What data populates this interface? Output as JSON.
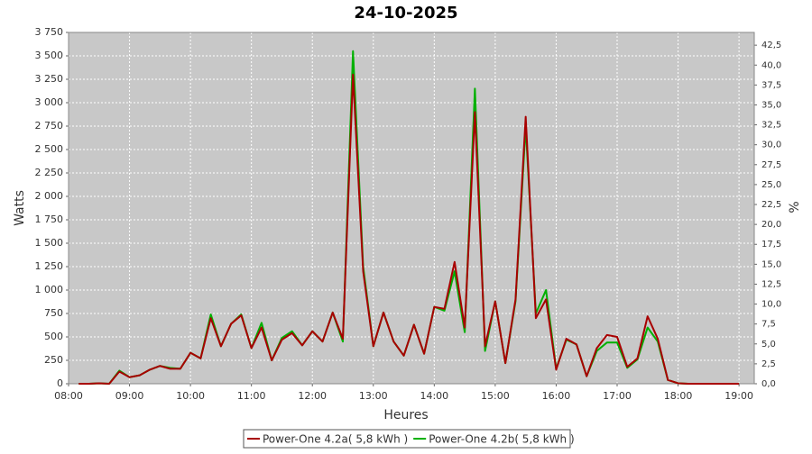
{
  "chart_data": {
    "type": "line",
    "title": "24-10-2025",
    "x_label": "Heures",
    "y_label": "Watts",
    "y2_label": "%",
    "x": [
      "08:10",
      "08:20",
      "08:30",
      "08:40",
      "08:50",
      "09:00",
      "09:10",
      "09:20",
      "09:30",
      "09:40",
      "09:50",
      "10:00",
      "10:10",
      "10:20",
      "10:30",
      "10:40",
      "10:50",
      "11:00",
      "11:10",
      "11:20",
      "11:30",
      "11:40",
      "11:50",
      "12:00",
      "12:10",
      "12:20",
      "12:30",
      "12:40",
      "12:50",
      "13:00",
      "13:10",
      "13:20",
      "13:30",
      "13:40",
      "13:50",
      "14:00",
      "14:10",
      "14:20",
      "14:30",
      "14:40",
      "14:50",
      "15:00",
      "15:10",
      "15:20",
      "15:30",
      "15:40",
      "15:50",
      "16:00",
      "16:10",
      "16:20",
      "16:30",
      "16:40",
      "16:50",
      "17:00",
      "17:10",
      "17:20",
      "17:30",
      "17:40",
      "17:50",
      "18:00",
      "18:10",
      "18:20",
      "18:30",
      "18:40",
      "18:50",
      "19:00"
    ],
    "series": [
      {
        "name": "Power-One 4.2a( 5,8 kWh )",
        "color": "#a80000",
        "values": [
          0,
          0,
          5,
          0,
          130,
          70,
          90,
          150,
          190,
          160,
          160,
          330,
          270,
          700,
          400,
          640,
          730,
          380,
          600,
          250,
          470,
          540,
          410,
          560,
          450,
          760,
          480,
          3300,
          1200,
          400,
          760,
          450,
          300,
          630,
          320,
          820,
          800,
          1300,
          600,
          2900,
          400,
          880,
          220,
          900,
          2850,
          700,
          900,
          150,
          480,
          420,
          80,
          380,
          520,
          500,
          180,
          270,
          720,
          480,
          40,
          5,
          0,
          0,
          0,
          0,
          0,
          0
        ]
      },
      {
        "name": "Power-One 4.2b( 5,8 kWh )",
        "color": "#00b000",
        "values": [
          0,
          0,
          5,
          0,
          140,
          70,
          90,
          150,
          190,
          170,
          160,
          330,
          270,
          740,
          400,
          640,
          740,
          380,
          650,
          250,
          490,
          560,
          410,
          560,
          450,
          760,
          450,
          3550,
          1250,
          400,
          760,
          450,
          300,
          630,
          320,
          820,
          780,
          1200,
          550,
          3150,
          350,
          880,
          220,
          880,
          2750,
          750,
          1000,
          160,
          470,
          420,
          80,
          350,
          440,
          440,
          170,
          260,
          600,
          450,
          40,
          5,
          0,
          0,
          0,
          0,
          0,
          0
        ]
      }
    ],
    "xlim": [
      "08:00",
      "19:15"
    ],
    "xticks": [
      "08:00",
      "09:00",
      "10:00",
      "11:00",
      "12:00",
      "13:00",
      "14:00",
      "15:00",
      "16:00",
      "17:00",
      "18:00",
      "19:00"
    ],
    "ylim": [
      0,
      3750
    ],
    "yticks": [
      0,
      250,
      500,
      750,
      {
        "value": 1000,
        "label": "1 000"
      },
      {
        "value": 1250,
        "label": "1 250"
      },
      {
        "value": 1500,
        "label": "1 500"
      },
      {
        "value": 1750,
        "label": "1 750"
      },
      {
        "value": 2000,
        "label": "2 000"
      },
      {
        "value": 2250,
        "label": "2 250"
      },
      {
        "value": 2500,
        "label": "2 500"
      },
      {
        "value": 2750,
        "label": "2 750"
      },
      {
        "value": 3000,
        "label": "3 000"
      },
      {
        "value": 3250,
        "label": "3 250"
      },
      {
        "value": 3500,
        "label": "3 500"
      },
      {
        "value": 3750,
        "label": "3 750"
      }
    ],
    "y2lim": [
      0,
      44.1
    ],
    "y2ticks": [
      {
        "value": 0,
        "label": "0,0"
      },
      {
        "value": 2.5,
        "label": "2,5"
      },
      {
        "value": 5,
        "label": "5,0"
      },
      {
        "value": 7.5,
        "label": "7,5"
      },
      {
        "value": 10,
        "label": "10,0"
      },
      {
        "value": 12.5,
        "label": "12,5"
      },
      {
        "value": 15,
        "label": "15,0"
      },
      {
        "value": 17.5,
        "label": "17,5"
      },
      {
        "value": 20,
        "label": "20,0"
      },
      {
        "value": 22.5,
        "label": "22,5"
      },
      {
        "value": 25,
        "label": "25,0"
      },
      {
        "value": 27.5,
        "label": "27,5"
      },
      {
        "value": 30,
        "label": "30,0"
      },
      {
        "value": 32.5,
        "label": "32,5"
      },
      {
        "value": 35,
        "label": "35,0"
      },
      {
        "value": 37.5,
        "label": "37,5"
      },
      {
        "value": 40,
        "label": "40,0"
      },
      {
        "value": 42.5,
        "label": "42,5"
      }
    ],
    "grid": true
  }
}
